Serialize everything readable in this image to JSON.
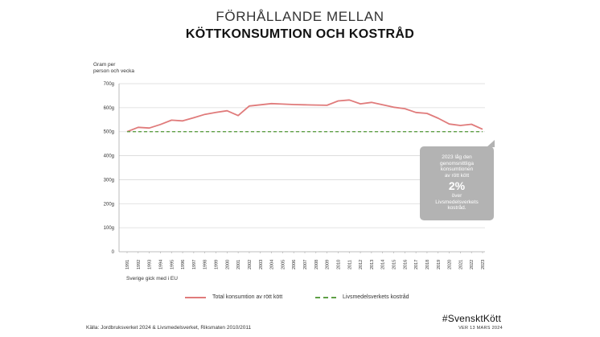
{
  "title": {
    "line1": "FÖRHÅLLANDE MELLAN",
    "line2": "KÖTTKONSUMTION OCH KOSTRÅD"
  },
  "ylabel": {
    "line1": "Gram per",
    "line2": "person och vecka"
  },
  "callout": {
    "line1": "2023 låg den",
    "line2": "genomsnittliga",
    "line3": "konsumtionen",
    "line4": "av rött kött",
    "percent": "2%",
    "line5": "över",
    "line6": "Livsmedelsverkets",
    "line7": "kostråd."
  },
  "eu_note": "Sverige gick med i EU",
  "legend": {
    "consumption": "Total konsumtion av rött kött",
    "advice": "Livsmedelsverkets kostråd"
  },
  "source": "Källa: Jordbruksverket 2024 & Livsmedelsverket, Riksmaten 2010/2011",
  "hashtag": "#SvensktKött",
  "version": "VER 13 MARS 2024",
  "colors": {
    "consumption": "#e07b7b",
    "advice": "#5fa046",
    "grid": "#d9d9d9",
    "callout": "#b3b3b3"
  },
  "chart_data": {
    "type": "line",
    "title": "FÖRHÅLLANDE MELLAN KÖTTKONSUMTION OCH KOSTRÅD",
    "ylabel": "Gram per person och vecka",
    "xlabel": "",
    "ylim": [
      0,
      700
    ],
    "yticks": [
      0,
      100,
      200,
      300,
      400,
      500,
      600,
      700
    ],
    "ytick_labels": [
      "0",
      "100g",
      "200g",
      "300g",
      "400g",
      "500g",
      "600g",
      "700g"
    ],
    "grid": true,
    "categories": [
      "1991",
      "1992",
      "1993",
      "1994",
      "1995",
      "1996",
      "1997",
      "1998",
      "1999",
      "2000",
      "2001",
      "2002",
      "2003",
      "2004",
      "2005",
      "2006",
      "2007",
      "2008",
      "2009",
      "2010",
      "2011",
      "2012",
      "2013",
      "2014",
      "2015",
      "2016",
      "2017",
      "2018",
      "2019",
      "2020",
      "2021",
      "2022",
      "2023"
    ],
    "series": [
      {
        "name": "Total konsumtion av rött kött",
        "style": "solid",
        "values": [
          500,
          518,
          515,
          530,
          548,
          545,
          558,
          572,
          580,
          587,
          567,
          607,
          612,
          617,
          615,
          613,
          612,
          611,
          610,
          628,
          632,
          616,
          622,
          612,
          602,
          596,
          580,
          576,
          556,
          532,
          526,
          531,
          510
        ]
      },
      {
        "name": "Livsmedelsverkets kostråd",
        "style": "dashed",
        "values": [
          500,
          500,
          500,
          500,
          500,
          500,
          500,
          500,
          500,
          500,
          500,
          500,
          500,
          500,
          500,
          500,
          500,
          500,
          500,
          500,
          500,
          500,
          500,
          500,
          500,
          500,
          500,
          500,
          500,
          500,
          500,
          500,
          500
        ]
      }
    ]
  }
}
